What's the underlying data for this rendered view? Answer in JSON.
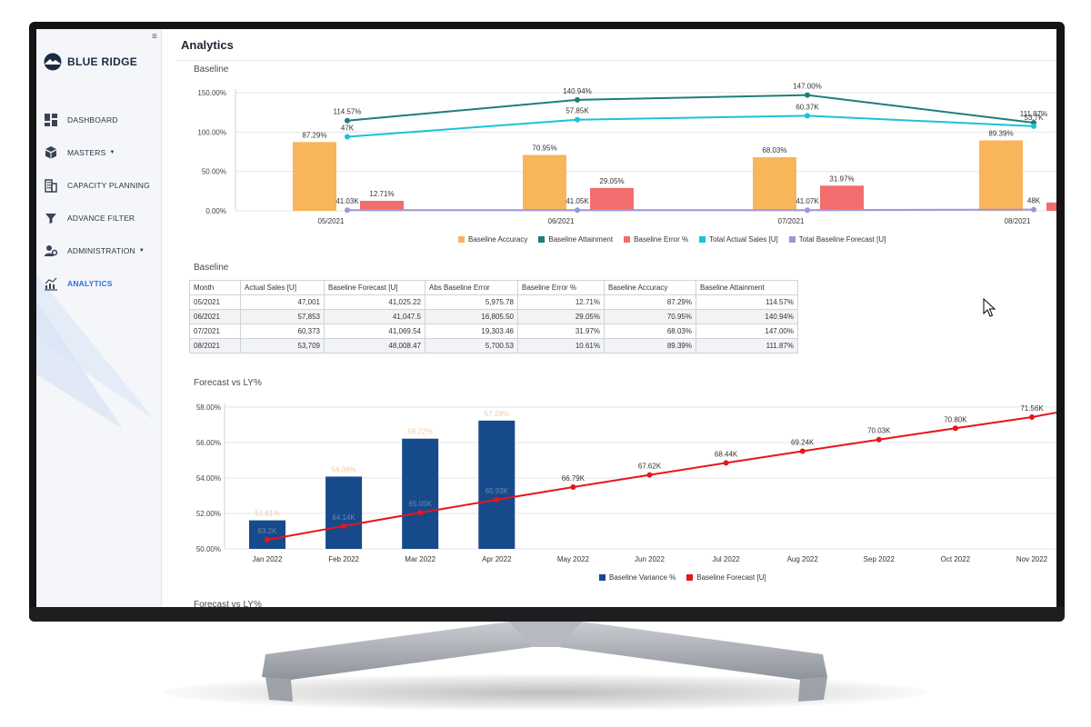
{
  "app": {
    "logo_text": "BLUE RIDGE",
    "collapse_icon": "≡"
  },
  "sidebar": {
    "items": [
      {
        "label": "DASHBOARD",
        "icon": "dashboard-icon",
        "dropdown": false,
        "active": false
      },
      {
        "label": "MASTERS",
        "icon": "cubes-icon",
        "dropdown": true,
        "active": false
      },
      {
        "label": "CAPACITY PLANNING",
        "icon": "building-icon",
        "dropdown": false,
        "active": false
      },
      {
        "label": "ADVANCE FILTER",
        "icon": "filter-icon",
        "dropdown": false,
        "active": false
      },
      {
        "label": "ADMINISTRATION",
        "icon": "users-gear-icon",
        "dropdown": true,
        "active": false
      },
      {
        "label": "ANALYTICS",
        "icon": "analytics-icon",
        "dropdown": false,
        "active": true
      }
    ],
    "dropdown_caret": "▼"
  },
  "page": {
    "title": "Analytics",
    "section1_label": "Baseline",
    "section2_label": "Baseline",
    "section3_label": "Forecast vs LY%",
    "section4_label": "Forecast vs LY%"
  },
  "colors": {
    "accuracy": "#f8b55a",
    "attainment": "#1c7f78",
    "error": "#f26d6d",
    "actual_sales": "#17c3d9",
    "baseline_forecast": "#9a98d8",
    "variance": "#174a8b",
    "forecast_line": "#e8141b",
    "active_nav": "#2f6fd6"
  },
  "table": {
    "headers": [
      "Month",
      "Actual Sales [U]",
      "Baseline Forecast [U]",
      "Abs Baseline Error",
      "Baseline Error %",
      "Baseline Accuracy",
      "Baseline Attainment"
    ],
    "rows": [
      [
        "05/2021",
        "47,001",
        "41,025.22",
        "5,975.78",
        "12.71%",
        "87.29%",
        "114.57%"
      ],
      [
        "06/2021",
        "57,853",
        "41,047.5",
        "16,805.50",
        "29.05%",
        "70.95%",
        "140.94%"
      ],
      [
        "07/2021",
        "60,373",
        "41,069.54",
        "19,303.46",
        "31.97%",
        "68.03%",
        "147.00%"
      ],
      [
        "08/2021",
        "53,709",
        "48,008.47",
        "5,700.53",
        "10.61%",
        "89.39%",
        "111.87%"
      ]
    ]
  },
  "chart_data": [
    {
      "type": "bar",
      "title": "Baseline",
      "categories": [
        "05/2021",
        "06/2021",
        "07/2021",
        "08/2021"
      ],
      "ylim": [
        0,
        150
      ],
      "y_ticks": [
        "0.00%",
        "50.00%",
        "100.00%",
        "150.00%"
      ],
      "grid": true,
      "legend_position": "bottom",
      "series": [
        {
          "name": "Baseline Accuracy",
          "kind": "bar",
          "values": [
            87.29,
            70.95,
            68.03,
            89.39
          ],
          "labels": [
            "87.29%",
            "70.95%",
            "68.03%",
            "89.39%"
          ]
        },
        {
          "name": "Baseline Attainment",
          "kind": "line",
          "values": [
            114.57,
            140.94,
            147.0,
            111.87
          ],
          "labels": [
            "114.57%",
            "140.94%",
            "147.00%",
            "111.87%"
          ]
        },
        {
          "name": "Baseline Error %",
          "kind": "bar",
          "values": [
            12.71,
            29.05,
            31.97,
            10.61
          ],
          "labels": [
            "12.71%",
            "29.05%",
            "31.97%",
            ""
          ]
        },
        {
          "name": "Total Actual Sales [U]",
          "kind": "line",
          "values": [
            47001,
            57853,
            60373,
            53709
          ],
          "labels": [
            "47K",
            "57.85K",
            "60.37K",
            "53.7K"
          ]
        },
        {
          "name": "Total Baseline Forecast [U]",
          "kind": "line",
          "values": [
            41025.22,
            41047.5,
            41069.54,
            48008.47
          ],
          "labels": [
            "41.03K",
            "41.05K",
            "41.07K",
            "48K"
          ]
        }
      ]
    },
    {
      "type": "bar",
      "title": "Forecast vs LY%",
      "categories": [
        "Jan 2022",
        "Feb 2022",
        "Mar 2022",
        "Apr 2022",
        "May 2022",
        "Jun 2022",
        "Jul 2022",
        "Aug 2022",
        "Sep 2022",
        "Oct 2022",
        "Nov 2022"
      ],
      "ylim": [
        50,
        58
      ],
      "y_ticks": [
        "50.00%",
        "52.00%",
        "54.00%",
        "56.00%",
        "58.00%"
      ],
      "grid": true,
      "legend_position": "bottom",
      "series": [
        {
          "name": "Baseline Variance %",
          "kind": "bar",
          "values": [
            51.61,
            54.08,
            56.22,
            57.24,
            null,
            null,
            null,
            null,
            null,
            null,
            null
          ],
          "labels": [
            "51.61%",
            "54.08%",
            "56.22%",
            "57.24%",
            "",
            "",
            "",
            "",
            "",
            "",
            ""
          ]
        },
        {
          "name": "Baseline Forecast [U]",
          "kind": "line",
          "values": [
            63.2,
            64.14,
            65.05,
            65.93,
            66.79,
            67.62,
            68.44,
            69.24,
            70.03,
            70.8,
            71.56
          ],
          "labels": [
            "63.2K",
            "64.14K",
            "65.05K",
            "65.93K",
            "66.79K",
            "67.62K",
            "68.44K",
            "69.24K",
            "70.03K",
            "70.80K",
            "71.56K"
          ]
        }
      ]
    }
  ]
}
